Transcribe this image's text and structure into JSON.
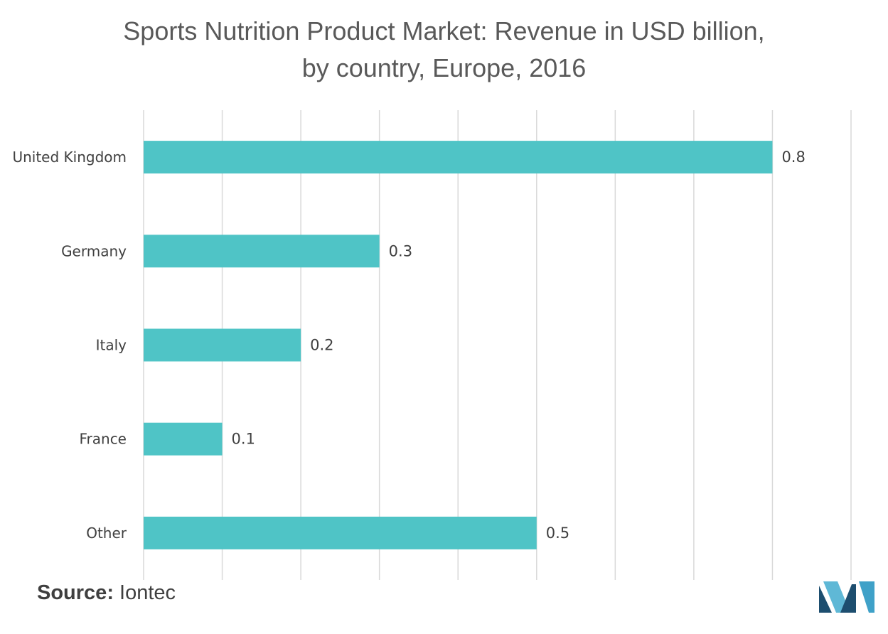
{
  "chart_data": {
    "type": "bar",
    "orientation": "horizontal",
    "title": "Sports Nutrition Product Market: Revenue in USD billion, by country, Europe, 2016",
    "title_lines": [
      "Sports Nutrition Product Market: Revenue in USD billion,",
      "by country, Europe, 2016"
    ],
    "categories": [
      "United Kingdom",
      "Germany",
      "Italy",
      "France",
      "Other"
    ],
    "values": [
      0.8,
      0.3,
      0.2,
      0.1,
      0.5
    ],
    "data_labels": [
      "0.8",
      "0.3",
      "0.2",
      "0.1",
      "0.5"
    ],
    "xlim": [
      0,
      0.9
    ],
    "grid_step": 0.1,
    "grid": true,
    "legend": "none",
    "bar_color": "#4fc4c6",
    "gridline_color": "#d9d9d9"
  },
  "source": {
    "label": "Source:",
    "text": "Iontec"
  },
  "logo": {
    "icon": "mordor-intelligence-logo-icon",
    "colors": [
      "#1d4e6f",
      "#5fb8d6",
      "#3fa1c8"
    ]
  }
}
